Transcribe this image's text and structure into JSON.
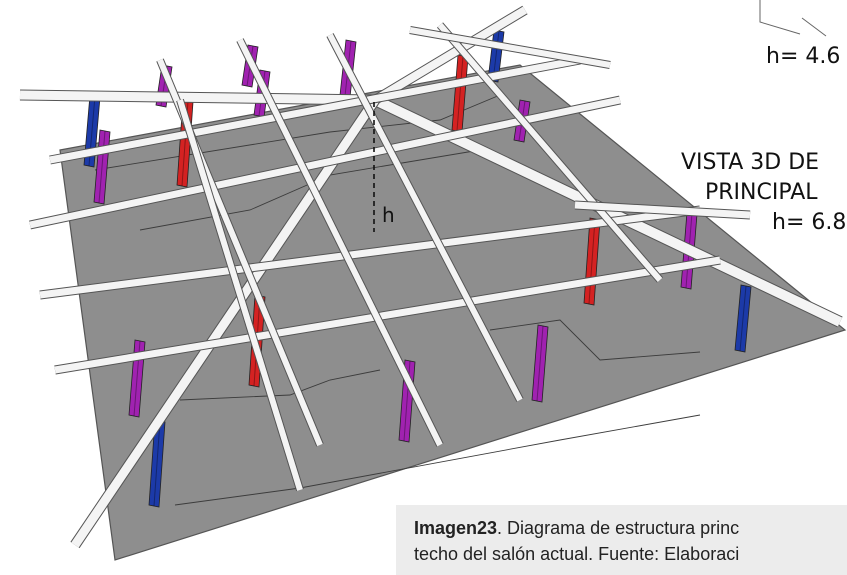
{
  "labels": {
    "h_small": "h= 4.6",
    "vista_line1": "VISTA 3D DE",
    "vista_line2": "PRINCIPAL",
    "h_main": "h= 6.8",
    "h_marker": "h"
  },
  "caption": {
    "title": "Imagen23",
    "line1": ". Diagrama de estructura princ",
    "line2": "techo del salón actual. Fuente: Elaboraci"
  },
  "colors": {
    "slab": "#8e8e8e",
    "beam": "#f4f4f4",
    "beam_edge": "#555555",
    "column_red": "#d42222",
    "column_purple": "#a022b0",
    "column_blue": "#1c3aa8",
    "caption_bg": "#ececec"
  }
}
